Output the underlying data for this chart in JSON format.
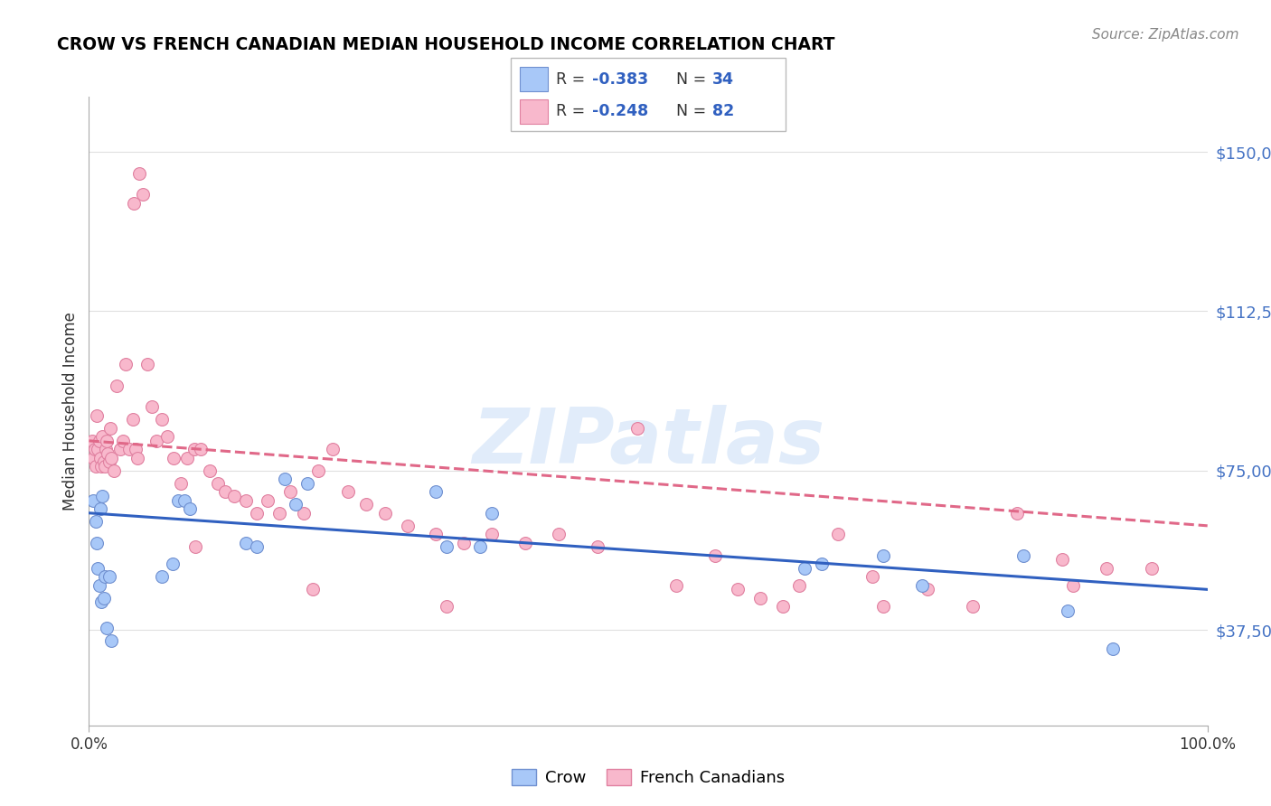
{
  "title": "CROW VS FRENCH CANADIAN MEDIAN HOUSEHOLD INCOME CORRELATION CHART",
  "source": "Source: ZipAtlas.com",
  "ylabel": "Median Household Income",
  "yticks": [
    37500,
    75000,
    112500,
    150000
  ],
  "ytick_labels": [
    "$37,500",
    "$75,000",
    "$112,500",
    "$150,000"
  ],
  "ymin": 15000,
  "ymax": 163000,
  "xmin": 0.0,
  "xmax": 1.0,
  "crow_color": "#a8c8f8",
  "fc_color": "#f8b8cc",
  "crow_edge": "#7090d0",
  "fc_edge": "#e080a0",
  "trendline_crow_color": "#3060c0",
  "trendline_fc_color": "#e06888",
  "watermark_text": "ZIPatlas",
  "crow_R": "-0.383",
  "crow_N": "34",
  "fc_R": "-0.248",
  "fc_N": "82",
  "legend_text_color": "#333333",
  "legend_value_color": "#3060c0",
  "crow_x": [
    0.004,
    0.006,
    0.007,
    0.008,
    0.009,
    0.01,
    0.011,
    0.012,
    0.013,
    0.014,
    0.016,
    0.018,
    0.02,
    0.065,
    0.075,
    0.08,
    0.085,
    0.09,
    0.14,
    0.15,
    0.175,
    0.185,
    0.195,
    0.31,
    0.32,
    0.35,
    0.36,
    0.64,
    0.655,
    0.71,
    0.745,
    0.835,
    0.875,
    0.915
  ],
  "crow_y": [
    68000,
    63000,
    58000,
    52000,
    48000,
    66000,
    44000,
    69000,
    45000,
    50000,
    38000,
    50000,
    35000,
    50000,
    53000,
    68000,
    68000,
    66000,
    58000,
    57000,
    73000,
    67000,
    72000,
    70000,
    57000,
    57000,
    65000,
    52000,
    53000,
    55000,
    48000,
    55000,
    42000,
    33000
  ],
  "fc_x": [
    0.003,
    0.004,
    0.005,
    0.006,
    0.007,
    0.008,
    0.009,
    0.01,
    0.011,
    0.012,
    0.013,
    0.014,
    0.015,
    0.016,
    0.017,
    0.018,
    0.019,
    0.02,
    0.022,
    0.025,
    0.028,
    0.03,
    0.033,
    0.036,
    0.039,
    0.042,
    0.045,
    0.048,
    0.052,
    0.056,
    0.06,
    0.065,
    0.07,
    0.076,
    0.082,
    0.088,
    0.094,
    0.1,
    0.108,
    0.115,
    0.122,
    0.13,
    0.14,
    0.15,
    0.16,
    0.17,
    0.18,
    0.192,
    0.205,
    0.218,
    0.232,
    0.248,
    0.265,
    0.285,
    0.31,
    0.335,
    0.36,
    0.39,
    0.42,
    0.455,
    0.49,
    0.525,
    0.56,
    0.6,
    0.635,
    0.67,
    0.71,
    0.75,
    0.79,
    0.83,
    0.87,
    0.91,
    0.95,
    0.04,
    0.043,
    0.095,
    0.2,
    0.32,
    0.58,
    0.62,
    0.7,
    0.88
  ],
  "fc_y": [
    82000,
    78000,
    80000,
    76000,
    88000,
    80000,
    82000,
    78000,
    76000,
    83000,
    77000,
    76000,
    80000,
    82000,
    79000,
    77000,
    85000,
    78000,
    75000,
    95000,
    80000,
    82000,
    100000,
    80000,
    87000,
    80000,
    145000,
    140000,
    100000,
    90000,
    82000,
    87000,
    83000,
    78000,
    72000,
    78000,
    80000,
    80000,
    75000,
    72000,
    70000,
    69000,
    68000,
    65000,
    68000,
    65000,
    70000,
    65000,
    75000,
    80000,
    70000,
    67000,
    65000,
    62000,
    60000,
    58000,
    60000,
    58000,
    60000,
    57000,
    85000,
    48000,
    55000,
    45000,
    48000,
    60000,
    43000,
    47000,
    43000,
    65000,
    54000,
    52000,
    52000,
    138000,
    78000,
    57000,
    47000,
    43000,
    47000,
    43000,
    50000,
    48000
  ]
}
